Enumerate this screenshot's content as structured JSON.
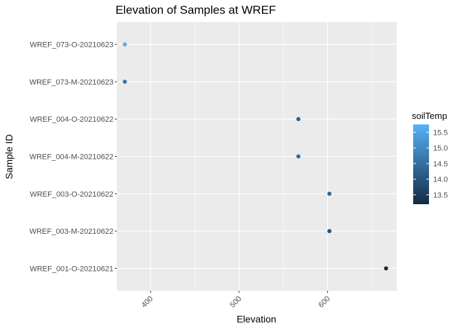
{
  "chart_data": {
    "type": "scatter",
    "title": "Elevation of Samples at WREF",
    "xlabel": "Elevation",
    "ylabel": "Sample ID",
    "xlim": [
      362,
      678
    ],
    "x_ticks": [
      400,
      500,
      600
    ],
    "x_tick_labels": [
      "400",
      "500",
      "600"
    ],
    "grid": true,
    "categories": [
      "WREF_001-O-20210621",
      "WREF_003-M-20210622",
      "WREF_003-O-20210622",
      "WREF_004-M-20210622",
      "WREF_004-O-20210622",
      "WREF_073-M-20210623",
      "WREF_073-O-20210623"
    ],
    "points": [
      {
        "category": "WREF_001-O-20210621",
        "x": 666,
        "color_value": 13.2
      },
      {
        "category": "WREF_003-M-20210622",
        "x": 602,
        "color_value": 14.0
      },
      {
        "category": "WREF_003-O-20210622",
        "x": 602,
        "color_value": 14.3
      },
      {
        "category": "WREF_004-M-20210622",
        "x": 567,
        "color_value": 14.4
      },
      {
        "category": "WREF_004-O-20210622",
        "x": 567,
        "color_value": 14.2
      },
      {
        "category": "WREF_073-M-20210623",
        "x": 371,
        "color_value": 14.6
      },
      {
        "category": "WREF_073-O-20210623",
        "x": 371,
        "color_value": 15.7
      }
    ],
    "legend": {
      "title": "soilTemp",
      "placement": "right",
      "range": [
        13.2,
        15.75
      ],
      "ticks": [
        13.5,
        14.0,
        14.5,
        15.0,
        15.5
      ],
      "tick_labels": [
        "13.5",
        "14.0",
        "14.5",
        "15.0",
        "15.5"
      ],
      "low_color": "#132b43",
      "high_color": "#56b1f7"
    },
    "panel_background": "#ebebeb",
    "grid_color": "#ffffff"
  }
}
